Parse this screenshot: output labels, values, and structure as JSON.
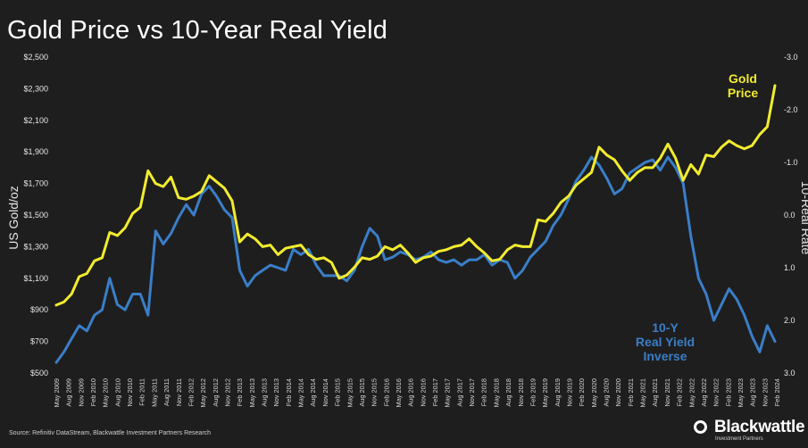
{
  "title": "Gold Price vs 10-Year Real Yield",
  "source": "Source: Refinitiv DataStream, Blackwattle Investment Partners Research",
  "brand": {
    "name": "Blackwattle",
    "subtitle": "Investment Partners"
  },
  "colors": {
    "background": "#1e1e1e",
    "gold": "#f2ec2e",
    "yield": "#3a7ec8",
    "text": "#ffffff"
  },
  "chart_data": {
    "type": "line",
    "title": "Gold Price vs 10-Year Real Yield",
    "ylabel_left": "US Gold/oz",
    "ylabel_right": "10-Real Rate",
    "left_axis": {
      "range": [
        500,
        2500
      ],
      "ticks": [
        "$2,500",
        "$2,300",
        "$2,100",
        "$1,900",
        "$1,700",
        "$1,500",
        "$1,300",
        "$1,100",
        "$900",
        "$700",
        "$500"
      ]
    },
    "right_axis": {
      "range": [
        3.0,
        -3.0
      ],
      "inverted": true,
      "ticks": [
        "-3.0",
        "-2.0",
        "-1.0",
        "0.0",
        "1.0",
        "2.0",
        "3.0"
      ]
    },
    "x_ticks": [
      "May 2009",
      "Aug 2009",
      "Nov 2009",
      "Feb 2010",
      "May 2010",
      "Aug 2010",
      "Nov 2010",
      "Feb 2011",
      "May 2011",
      "Aug 2011",
      "Nov 2011",
      "Feb 2012",
      "May 2012",
      "Aug 2012",
      "Nov 2012",
      "Feb 2013",
      "May 2013",
      "Aug 2013",
      "Nov 2013",
      "Feb 2014",
      "May 2014",
      "Aug 2014",
      "Nov 2014",
      "Feb 2015",
      "May 2015",
      "Aug 2015",
      "Nov 2015",
      "Feb 2016",
      "May 2016",
      "Aug 2016",
      "Nov 2016",
      "Feb 2017",
      "May 2017",
      "Aug 2017",
      "Nov 2017",
      "Feb 2018",
      "May 2018",
      "Aug 2018",
      "Nov 2018",
      "Feb 2019",
      "May 2019",
      "Aug 2019",
      "Nov 2019",
      "Feb 2020",
      "May 2020",
      "Aug 2020",
      "Nov 2020",
      "Feb 2021",
      "May 2021",
      "Aug 2021",
      "Nov 2021",
      "Feb 2022",
      "May 2022",
      "Aug 2022",
      "Nov 2022",
      "Feb 2023",
      "May 2023",
      "Aug 2023",
      "Nov 2023",
      "Feb 2024"
    ],
    "series": [
      {
        "name": "Gold Price",
        "label": "Gold Price",
        "axis": "left",
        "values": [
          930,
          950,
          1000,
          1110,
          1130,
          1210,
          1230,
          1390,
          1370,
          1420,
          1510,
          1550,
          1780,
          1700,
          1680,
          1740,
          1610,
          1600,
          1620,
          1650,
          1750,
          1710,
          1670,
          1590,
          1330,
          1380,
          1350,
          1300,
          1310,
          1250,
          1290,
          1300,
          1310,
          1250,
          1220,
          1230,
          1200,
          1100,
          1120,
          1170,
          1230,
          1220,
          1240,
          1300,
          1280,
          1310,
          1260,
          1200,
          1230,
          1240,
          1270,
          1280,
          1300,
          1310,
          1350,
          1300,
          1260,
          1210,
          1220,
          1280,
          1310,
          1300,
          1300,
          1470,
          1460,
          1510,
          1580,
          1620,
          1690,
          1730,
          1770,
          1930,
          1880,
          1850,
          1780,
          1720,
          1770,
          1800,
          1800,
          1860,
          1950,
          1860,
          1720,
          1820,
          1760,
          1880,
          1870,
          1930,
          1970,
          1940,
          1920,
          1940,
          2010,
          2060,
          2320
        ]
      },
      {
        "name": "10-Y Real Yield Inverse",
        "label": "10-Y Real Yield Inverse",
        "axis": "right",
        "values": [
          2.8,
          2.6,
          2.35,
          2.1,
          2.2,
          1.9,
          1.8,
          1.2,
          1.7,
          1.8,
          1.5,
          1.5,
          1.9,
          0.3,
          0.55,
          0.35,
          0.05,
          -0.2,
          0.0,
          -0.4,
          -0.55,
          -0.35,
          -0.1,
          0.05,
          1.05,
          1.35,
          1.15,
          1.05,
          0.95,
          1.0,
          1.05,
          0.65,
          0.75,
          0.65,
          0.95,
          1.15,
          1.15,
          1.15,
          1.25,
          1.05,
          0.6,
          0.25,
          0.4,
          0.85,
          0.8,
          0.7,
          0.75,
          0.85,
          0.8,
          0.7,
          0.85,
          0.9,
          0.85,
          0.95,
          0.85,
          0.85,
          0.75,
          0.95,
          0.85,
          0.9,
          1.2,
          1.05,
          0.8,
          0.65,
          0.5,
          0.2,
          0.0,
          -0.3,
          -0.65,
          -0.85,
          -1.1,
          -0.95,
          -0.7,
          -0.4,
          -0.5,
          -0.8,
          -0.9,
          -1.0,
          -1.05,
          -0.85,
          -1.1,
          -0.9,
          -0.6,
          0.4,
          1.2,
          1.5,
          2.0,
          1.7,
          1.4,
          1.6,
          1.9,
          2.3,
          2.6,
          2.1,
          2.4
        ]
      }
    ],
    "annotations": [
      {
        "series": "Gold Price",
        "lines": [
          "Gold",
          "Price"
        ]
      },
      {
        "series": "10-Y Real Yield Inverse",
        "lines": [
          "10-Y",
          "Real Yield",
          "Inverse"
        ]
      }
    ],
    "grid": false,
    "legend": "none"
  }
}
